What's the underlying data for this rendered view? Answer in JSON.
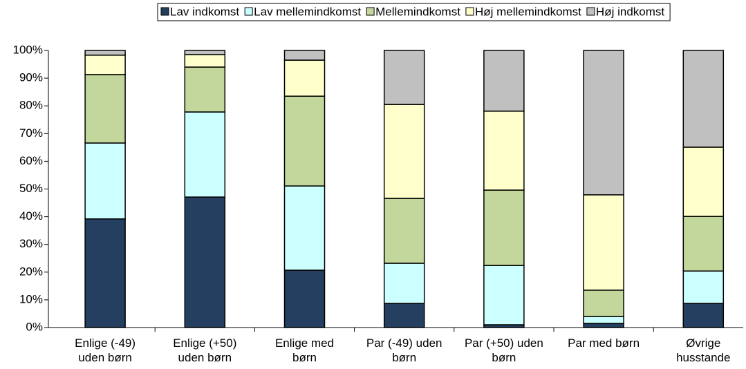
{
  "chart_data": {
    "type": "stacked_bar",
    "categories": [
      [
        "Enlige (-49)",
        "uden børn"
      ],
      [
        "Enlige (+50)",
        "uden børn"
      ],
      [
        "Enlige med",
        "børn"
      ],
      [
        "Par (-49) uden",
        "børn"
      ],
      [
        "Par (+50) uden",
        "børn"
      ],
      [
        "Par med børn"
      ],
      [
        "Øvrige",
        "husstande"
      ]
    ],
    "series": [
      {
        "name": "Lav indkomst",
        "color": "#243f60",
        "values": [
          39.2,
          47.1,
          20.7,
          8.7,
          1.0,
          1.5,
          8.7
        ]
      },
      {
        "name": "Lav mellemindkomst",
        "color": "#ccffff",
        "values": [
          27.4,
          30.7,
          30.4,
          14.5,
          21.4,
          2.5,
          11.7
        ]
      },
      {
        "name": "Mellemindkomst",
        "color": "#c3d69b",
        "values": [
          24.7,
          16.2,
          32.4,
          23.4,
          27.2,
          9.5,
          19.7
        ]
      },
      {
        "name": "Høj mellemindkomst",
        "color": "#ffffcc",
        "values": [
          7.0,
          4.5,
          13.0,
          33.9,
          28.5,
          34.4,
          25.0
        ]
      },
      {
        "name": "Høj indkomst",
        "color": "#c0c0c0",
        "values": [
          1.7,
          1.5,
          3.5,
          19.5,
          21.9,
          52.1,
          34.9
        ]
      }
    ],
    "ylim": [
      0,
      100
    ],
    "yticks": [
      {
        "value": 0,
        "label": "0%"
      },
      {
        "value": 10,
        "label": "10%"
      },
      {
        "value": 20,
        "label": "20%"
      },
      {
        "value": 30,
        "label": "30%"
      },
      {
        "value": 40,
        "label": "40%"
      },
      {
        "value": 50,
        "label": "50%"
      },
      {
        "value": 60,
        "label": "60%"
      },
      {
        "value": 70,
        "label": "70%"
      },
      {
        "value": 80,
        "label": "80%"
      },
      {
        "value": 90,
        "label": "90%"
      },
      {
        "value": 100,
        "label": "100%"
      }
    ],
    "legend": "top"
  }
}
